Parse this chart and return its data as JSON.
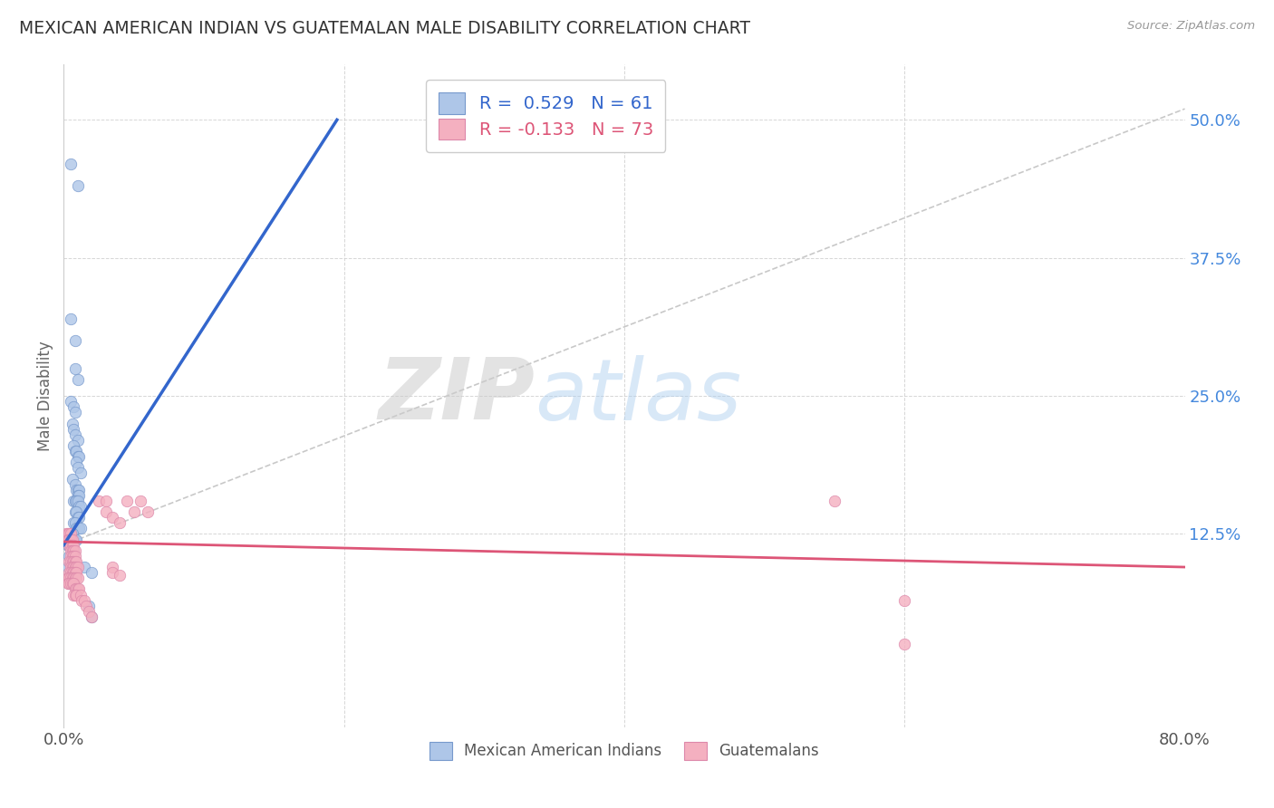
{
  "title": "MEXICAN AMERICAN INDIAN VS GUATEMALAN MALE DISABILITY CORRELATION CHART",
  "source": "Source: ZipAtlas.com",
  "ylabel": "Male Disability",
  "ytick_labels": [
    "12.5%",
    "25.0%",
    "37.5%",
    "50.0%"
  ],
  "ytick_values": [
    0.125,
    0.25,
    0.375,
    0.5
  ],
  "xlim": [
    0.0,
    0.8
  ],
  "ylim": [
    -0.05,
    0.55
  ],
  "blue_scatter": [
    [
      0.005,
      0.46
    ],
    [
      0.01,
      0.44
    ],
    [
      0.005,
      0.32
    ],
    [
      0.008,
      0.3
    ],
    [
      0.008,
      0.275
    ],
    [
      0.01,
      0.265
    ],
    [
      0.005,
      0.245
    ],
    [
      0.007,
      0.24
    ],
    [
      0.008,
      0.235
    ],
    [
      0.006,
      0.225
    ],
    [
      0.007,
      0.22
    ],
    [
      0.008,
      0.215
    ],
    [
      0.01,
      0.21
    ],
    [
      0.007,
      0.205
    ],
    [
      0.008,
      0.2
    ],
    [
      0.009,
      0.2
    ],
    [
      0.01,
      0.195
    ],
    [
      0.011,
      0.195
    ],
    [
      0.009,
      0.19
    ],
    [
      0.01,
      0.185
    ],
    [
      0.012,
      0.18
    ],
    [
      0.006,
      0.175
    ],
    [
      0.008,
      0.17
    ],
    [
      0.009,
      0.165
    ],
    [
      0.01,
      0.165
    ],
    [
      0.011,
      0.165
    ],
    [
      0.01,
      0.16
    ],
    [
      0.011,
      0.16
    ],
    [
      0.007,
      0.155
    ],
    [
      0.008,
      0.155
    ],
    [
      0.009,
      0.155
    ],
    [
      0.01,
      0.155
    ],
    [
      0.011,
      0.15
    ],
    [
      0.012,
      0.15
    ],
    [
      0.008,
      0.145
    ],
    [
      0.009,
      0.145
    ],
    [
      0.01,
      0.14
    ],
    [
      0.011,
      0.14
    ],
    [
      0.007,
      0.135
    ],
    [
      0.008,
      0.135
    ],
    [
      0.009,
      0.13
    ],
    [
      0.01,
      0.13
    ],
    [
      0.011,
      0.13
    ],
    [
      0.012,
      0.13
    ],
    [
      0.005,
      0.125
    ],
    [
      0.006,
      0.125
    ],
    [
      0.007,
      0.12
    ],
    [
      0.008,
      0.12
    ],
    [
      0.009,
      0.12
    ],
    [
      0.003,
      0.115
    ],
    [
      0.004,
      0.115
    ],
    [
      0.005,
      0.115
    ],
    [
      0.006,
      0.115
    ],
    [
      0.007,
      0.11
    ],
    [
      0.004,
      0.105
    ],
    [
      0.005,
      0.1
    ],
    [
      0.003,
      0.095
    ],
    [
      0.015,
      0.095
    ],
    [
      0.02,
      0.09
    ],
    [
      0.018,
      0.06
    ],
    [
      0.02,
      0.05
    ]
  ],
  "pink_scatter": [
    [
      0.002,
      0.125
    ],
    [
      0.003,
      0.125
    ],
    [
      0.004,
      0.125
    ],
    [
      0.005,
      0.125
    ],
    [
      0.003,
      0.12
    ],
    [
      0.004,
      0.12
    ],
    [
      0.005,
      0.12
    ],
    [
      0.006,
      0.12
    ],
    [
      0.004,
      0.115
    ],
    [
      0.005,
      0.115
    ],
    [
      0.006,
      0.115
    ],
    [
      0.007,
      0.115
    ],
    [
      0.005,
      0.11
    ],
    [
      0.006,
      0.11
    ],
    [
      0.007,
      0.11
    ],
    [
      0.008,
      0.11
    ],
    [
      0.005,
      0.105
    ],
    [
      0.006,
      0.105
    ],
    [
      0.007,
      0.105
    ],
    [
      0.008,
      0.105
    ],
    [
      0.004,
      0.1
    ],
    [
      0.005,
      0.1
    ],
    [
      0.006,
      0.1
    ],
    [
      0.007,
      0.1
    ],
    [
      0.008,
      0.1
    ],
    [
      0.009,
      0.1
    ],
    [
      0.005,
      0.095
    ],
    [
      0.006,
      0.095
    ],
    [
      0.007,
      0.095
    ],
    [
      0.008,
      0.095
    ],
    [
      0.009,
      0.095
    ],
    [
      0.01,
      0.095
    ],
    [
      0.004,
      0.09
    ],
    [
      0.005,
      0.09
    ],
    [
      0.006,
      0.09
    ],
    [
      0.007,
      0.09
    ],
    [
      0.008,
      0.09
    ],
    [
      0.009,
      0.09
    ],
    [
      0.003,
      0.085
    ],
    [
      0.004,
      0.085
    ],
    [
      0.005,
      0.085
    ],
    [
      0.006,
      0.085
    ],
    [
      0.007,
      0.085
    ],
    [
      0.008,
      0.085
    ],
    [
      0.009,
      0.085
    ],
    [
      0.01,
      0.085
    ],
    [
      0.003,
      0.08
    ],
    [
      0.004,
      0.08
    ],
    [
      0.005,
      0.08
    ],
    [
      0.006,
      0.08
    ],
    [
      0.007,
      0.08
    ],
    [
      0.008,
      0.075
    ],
    [
      0.009,
      0.075
    ],
    [
      0.01,
      0.075
    ],
    [
      0.011,
      0.075
    ],
    [
      0.007,
      0.07
    ],
    [
      0.008,
      0.07
    ],
    [
      0.009,
      0.07
    ],
    [
      0.012,
      0.07
    ],
    [
      0.013,
      0.065
    ],
    [
      0.015,
      0.065
    ],
    [
      0.016,
      0.06
    ],
    [
      0.018,
      0.055
    ],
    [
      0.02,
      0.05
    ],
    [
      0.025,
      0.155
    ],
    [
      0.03,
      0.155
    ],
    [
      0.03,
      0.145
    ],
    [
      0.035,
      0.14
    ],
    [
      0.04,
      0.135
    ],
    [
      0.035,
      0.095
    ],
    [
      0.035,
      0.09
    ],
    [
      0.04,
      0.088
    ],
    [
      0.045,
      0.155
    ],
    [
      0.05,
      0.145
    ],
    [
      0.055,
      0.155
    ],
    [
      0.06,
      0.145
    ],
    [
      0.55,
      0.155
    ],
    [
      0.6,
      0.025
    ],
    [
      0.6,
      0.065
    ]
  ],
  "blue_line_x": [
    0.0,
    0.195
  ],
  "blue_line_y": [
    0.115,
    0.5
  ],
  "pink_line_x": [
    0.0,
    0.8
  ],
  "pink_line_y": [
    0.118,
    0.095
  ],
  "dashed_line_x": [
    0.0,
    0.8
  ],
  "dashed_line_y": [
    0.115,
    0.51
  ],
  "blue_line_color": "#3366cc",
  "pink_line_color": "#dd5577",
  "dashed_line_color": "#bbbbbb",
  "scatter_blue": "#aec6e8",
  "scatter_pink": "#f4b0c0",
  "scatter_blue_edge": "#7799cc",
  "scatter_pink_edge": "#dd88aa",
  "watermark_zip": "ZIP",
  "watermark_atlas": "atlas",
  "background_color": "#ffffff",
  "grid_color": "#cccccc"
}
